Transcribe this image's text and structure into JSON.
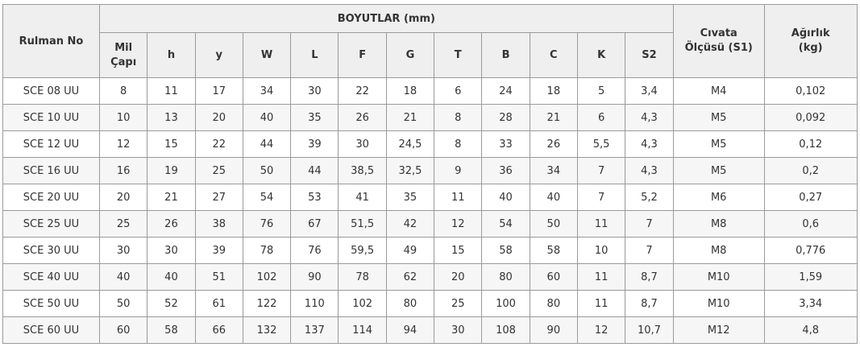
{
  "table": {
    "header": {
      "rulman_no": "Rulman No",
      "group": "BOYUTLAR (mm)",
      "columns": [
        [
          "Mil",
          "Çapı"
        ],
        [
          "h"
        ],
        [
          "y"
        ],
        [
          "W"
        ],
        [
          "L"
        ],
        [
          "F"
        ],
        [
          "G"
        ],
        [
          "T"
        ],
        [
          "B"
        ],
        [
          "C"
        ],
        [
          "K"
        ],
        [
          "S2"
        ]
      ],
      "civata": [
        "Cıvata",
        "Ölçüsü (S1)"
      ],
      "agirlik": [
        "Ağırlık",
        "(kg)"
      ]
    },
    "rows": [
      [
        "SCE 08 UU",
        "8",
        "11",
        "17",
        "34",
        "30",
        "22",
        "18",
        "6",
        "24",
        "18",
        "5",
        "3,4",
        "M4",
        "0,102"
      ],
      [
        "SCE 10 UU",
        "10",
        "13",
        "20",
        "40",
        "35",
        "26",
        "21",
        "8",
        "28",
        "21",
        "6",
        "4,3",
        "M5",
        "0,092"
      ],
      [
        "SCE 12 UU",
        "12",
        "15",
        "22",
        "44",
        "39",
        "30",
        "24,5",
        "8",
        "33",
        "26",
        "5,5",
        "4,3",
        "M5",
        "0,12"
      ],
      [
        "SCE 16 UU",
        "16",
        "19",
        "25",
        "50",
        "44",
        "38,5",
        "32,5",
        "9",
        "36",
        "34",
        "7",
        "4,3",
        "M5",
        "0,2"
      ],
      [
        "SCE 20 UU",
        "20",
        "21",
        "27",
        "54",
        "53",
        "41",
        "35",
        "11",
        "40",
        "40",
        "7",
        "5,2",
        "M6",
        "0,27"
      ],
      [
        "SCE 25 UU",
        "25",
        "26",
        "38",
        "76",
        "67",
        "51,5",
        "42",
        "12",
        "54",
        "50",
        "11",
        "7",
        "M8",
        "0,6"
      ],
      [
        "SCE 30 UU",
        "30",
        "30",
        "39",
        "78",
        "76",
        "59,5",
        "49",
        "15",
        "58",
        "58",
        "10",
        "7",
        "M8",
        "0,776"
      ],
      [
        "SCE 40 UU",
        "40",
        "40",
        "51",
        "102",
        "90",
        "78",
        "62",
        "20",
        "80",
        "60",
        "11",
        "8,7",
        "M10",
        "1,59"
      ],
      [
        "SCE 50 UU",
        "50",
        "52",
        "61",
        "122",
        "110",
        "102",
        "80",
        "25",
        "100",
        "80",
        "11",
        "8,7",
        "M10",
        "3,34"
      ],
      [
        "SCE 60 UU",
        "60",
        "58",
        "66",
        "132",
        "137",
        "114",
        "94",
        "30",
        "108",
        "90",
        "12",
        "10,7",
        "M12",
        "4,8"
      ]
    ]
  }
}
